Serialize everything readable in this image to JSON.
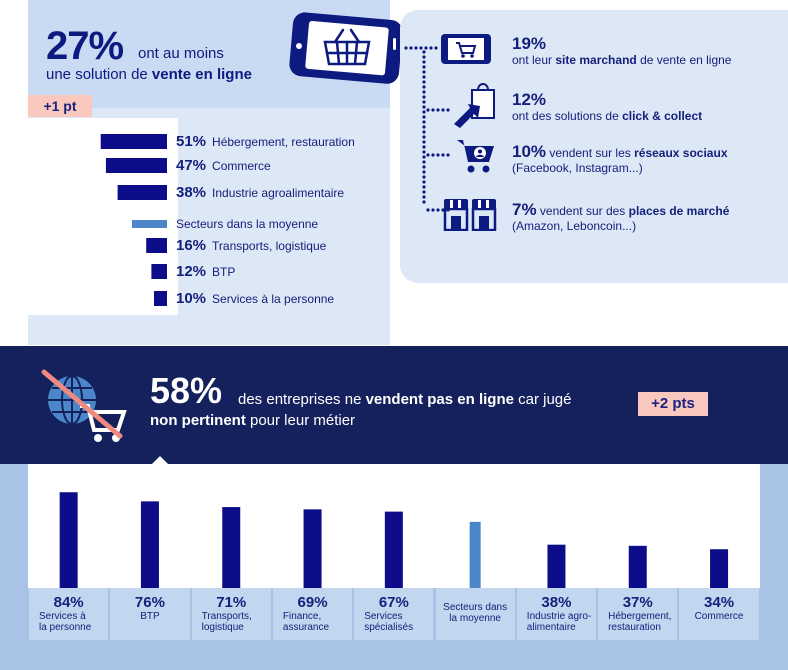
{
  "top": {
    "pct": "27%",
    "line1": "ont au moins",
    "line2_prefix": "une solution de ",
    "line2_bold": "vente en ligne",
    "badge": "+1 pt"
  },
  "channels": [
    {
      "pct": "19%",
      "pre": "",
      "l1_pre": "ont leur ",
      "bold": "site marchand",
      "l1_post": " de vente en ligne",
      "l2": "",
      "icon": "tablet-cart-icon"
    },
    {
      "pct": "12%",
      "l1_pre": "ont des solutions de ",
      "bold": "click & collect",
      "l1_post": "",
      "l2": "",
      "icon": "bag-click-icon"
    },
    {
      "pct": "10%",
      "inline": " vendent sur les ",
      "bold": "réseaux sociaux",
      "l2": "(Facebook, Instagram...)",
      "icon": "cart-user-icon"
    },
    {
      "pct": "7%",
      "inline": " vendent sur des ",
      "bold": "places de marché",
      "l2": "(Amazon, Leboncoin...)",
      "icon": "market-stalls-icon"
    }
  ],
  "band": {
    "pct": "58%",
    "l1_pre": " des entreprises ne ",
    "l1_bold": "vendent pas en ligne",
    "l1_post": " car jugé",
    "l2_bold": "non pertinent",
    "l2_post": " pour leur métier",
    "badge": "+2 pts"
  },
  "chart_data": [
    {
      "type": "bar",
      "orientation": "horizontal",
      "categories": [
        "Hébergement, restauration",
        "Commerce",
        "Industrie agroalimentaire",
        "Secteurs dans la moyenne",
        "Transports, logistique",
        "BTP",
        "Services à la personne"
      ],
      "values": [
        51,
        47,
        38,
        27,
        16,
        12,
        10
      ],
      "labels": [
        "51%",
        "47%",
        "38%",
        "",
        "16%",
        "12%",
        "10%"
      ],
      "highlight_index": 3,
      "colors": {
        "bar": "#0d0d8a",
        "highlight": "#4a86c8"
      }
    },
    {
      "type": "bar",
      "orientation": "vertical",
      "categories": [
        "Services à la personne",
        "BTP",
        "Transports, logistique",
        "Finance, assurance",
        "Services spécialisés",
        "Secteurs dans la moyenne",
        "Industrie agro-alimentaire",
        "Hébergement, restauration",
        "Commerce"
      ],
      "label_lines": [
        [
          "Services à",
          "la personne"
        ],
        [
          "BTP"
        ],
        [
          "Transports,",
          "logistique"
        ],
        [
          "Finance,",
          "assurance"
        ],
        [
          "Services",
          "spécialisés"
        ],
        [
          "Secteurs dans",
          "la moyenne"
        ],
        [
          "Industrie agro-",
          "alimentaire"
        ],
        [
          "Hébergement,",
          "restauration"
        ],
        [
          "Commerce"
        ]
      ],
      "values": [
        84,
        76,
        71,
        69,
        67,
        58,
        38,
        37,
        34
      ],
      "labels": [
        "84%",
        "76%",
        "71%",
        "69%",
        "67%",
        "",
        "38%",
        "37%",
        "34%"
      ],
      "highlight_index": 5,
      "colors": {
        "bar": "#0d0d8a",
        "highlight": "#4a86c8"
      }
    }
  ]
}
